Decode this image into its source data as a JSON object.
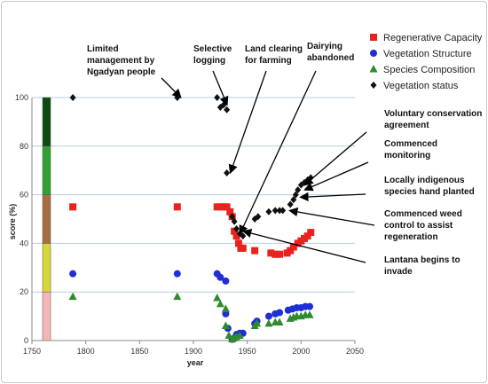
{
  "chart_data": {
    "type": "scatter",
    "title": "",
    "xlabel": "year",
    "ylabel": "score (%)",
    "xlim": [
      1750,
      2050
    ],
    "ylim": [
      0,
      100
    ],
    "xticks": [
      1750,
      1800,
      1850,
      1900,
      1950,
      2000,
      2050
    ],
    "yticks": [
      0,
      20,
      40,
      60,
      80,
      100
    ],
    "grid": "horizontal",
    "legend_position": "top-right",
    "bands": [
      {
        "from": 0,
        "to": 20,
        "color": "#f7b7b7"
      },
      {
        "from": 20,
        "to": 40,
        "color": "#d6d63a"
      },
      {
        "from": 40,
        "to": 60,
        "color": "#a86e42"
      },
      {
        "from": 60,
        "to": 80,
        "color": "#33a033"
      },
      {
        "from": 80,
        "to": 100,
        "color": "#0f4a0f"
      }
    ],
    "series": [
      {
        "name": "Regenerative Capacity",
        "marker": "square",
        "color": "#e8231f",
        "points": [
          [
            1788,
            55
          ],
          [
            1885,
            55
          ],
          [
            1922,
            55
          ],
          [
            1925,
            55
          ],
          [
            1928,
            55
          ],
          [
            1931,
            55
          ],
          [
            1934,
            53
          ],
          [
            1936,
            51
          ],
          [
            1938,
            45
          ],
          [
            1940,
            43
          ],
          [
            1942,
            40
          ],
          [
            1944,
            38
          ],
          [
            1946,
            38
          ],
          [
            1957,
            37
          ],
          [
            1972,
            36
          ],
          [
            1976,
            35.5
          ],
          [
            1980,
            35.5
          ],
          [
            1987,
            36
          ],
          [
            1990,
            37
          ],
          [
            1993,
            38.5
          ],
          [
            1997,
            40
          ],
          [
            2000,
            41
          ],
          [
            2003,
            42
          ],
          [
            2006,
            43
          ],
          [
            2009,
            44.5
          ]
        ]
      },
      {
        "name": "Vegetation Structure",
        "marker": "circle",
        "color": "#1f2ed6",
        "points": [
          [
            1788,
            27.5
          ],
          [
            1885,
            27.5
          ],
          [
            1922,
            27.5
          ],
          [
            1925,
            26
          ],
          [
            1930,
            24.5
          ],
          [
            1930,
            11
          ],
          [
            1932,
            5
          ],
          [
            1936,
            0.5
          ],
          [
            1938,
            1
          ],
          [
            1940,
            2.5
          ],
          [
            1943,
            3
          ],
          [
            1946,
            3
          ],
          [
            1957,
            7
          ],
          [
            1959,
            8
          ],
          [
            1970,
            10
          ],
          [
            1976,
            11
          ],
          [
            1980,
            11.5
          ],
          [
            1988,
            12.5
          ],
          [
            1992,
            13
          ],
          [
            1996,
            13.5
          ],
          [
            2000,
            13.5
          ],
          [
            2004,
            14
          ],
          [
            2008,
            14
          ]
        ]
      },
      {
        "name": "Species Composition",
        "marker": "triangle",
        "color": "#2e8b2e",
        "points": [
          [
            1788,
            18
          ],
          [
            1885,
            18
          ],
          [
            1922,
            17.5
          ],
          [
            1925,
            15
          ],
          [
            1930,
            13
          ],
          [
            1930,
            6
          ],
          [
            1933,
            2
          ],
          [
            1936,
            0.5
          ],
          [
            1938,
            1
          ],
          [
            1940,
            1.5
          ],
          [
            1943,
            2
          ],
          [
            1957,
            6
          ],
          [
            1959,
            7
          ],
          [
            1970,
            7
          ],
          [
            1976,
            7.5
          ],
          [
            1980,
            7.5
          ],
          [
            1990,
            9
          ],
          [
            1993,
            9.5
          ],
          [
            1996,
            10
          ],
          [
            2000,
            10
          ],
          [
            2004,
            10.5
          ],
          [
            2008,
            10.5
          ]
        ]
      },
      {
        "name": "Vegetation status",
        "marker": "diamond",
        "color": "#111111",
        "points": [
          [
            1788,
            100
          ],
          [
            1885,
            100
          ],
          [
            1922,
            100
          ],
          [
            1925,
            96
          ],
          [
            1928,
            97
          ],
          [
            1931,
            95
          ],
          [
            1931,
            69
          ],
          [
            1936,
            51
          ],
          [
            1938,
            49
          ],
          [
            1940,
            46
          ],
          [
            1943,
            44
          ],
          [
            1946,
            43
          ],
          [
            1957,
            50
          ],
          [
            1960,
            51
          ],
          [
            1970,
            53
          ],
          [
            1976,
            53.5
          ],
          [
            1980,
            53.5
          ],
          [
            1983,
            53.5
          ],
          [
            1990,
            56
          ],
          [
            1993,
            58
          ],
          [
            1995,
            60
          ],
          [
            1997,
            62
          ],
          [
            2000,
            64
          ],
          [
            2003,
            65
          ],
          [
            2006,
            66
          ],
          [
            2009,
            67
          ]
        ]
      }
    ],
    "annotations": [
      {
        "lines": [
          "Limited",
          "management by",
          "Ngadyan people"
        ],
        "target": [
          1885,
          100
        ]
      },
      {
        "lines": [
          "Selective",
          "logging"
        ],
        "target": [
          1928,
          97
        ]
      },
      {
        "lines": [
          "Land clearing",
          "for farming"
        ],
        "target": [
          1931,
          69
        ]
      },
      {
        "lines": [
          "Dairying",
          "abandoned"
        ],
        "target": [
          1940,
          44
        ]
      },
      {
        "lines": [
          "Voluntary conservation",
          "agreement"
        ],
        "target": [
          2000,
          64
        ]
      },
      {
        "lines": [
          "Commenced",
          "monitoring"
        ],
        "target": [
          2000,
          62
        ]
      },
      {
        "lines": [
          "Locally indigenous",
          "species hand planted"
        ],
        "target": [
          1996,
          59
        ]
      },
      {
        "lines": [
          "Commenced weed",
          "control to assist",
          "regeneration"
        ],
        "target": [
          1986,
          53.5
        ]
      },
      {
        "lines": [
          "Lantana begins to",
          "invade"
        ],
        "target": [
          1943,
          45
        ]
      }
    ]
  }
}
